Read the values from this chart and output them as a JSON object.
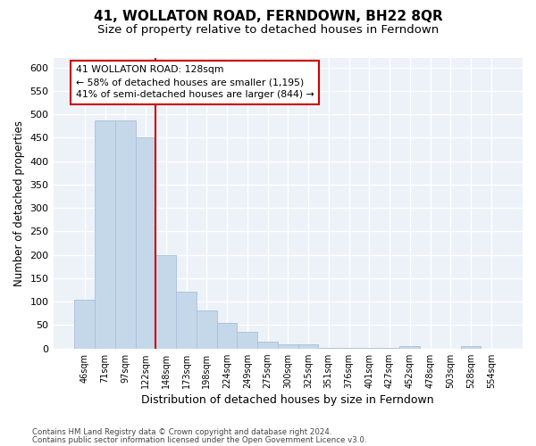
{
  "title": "41, WOLLATON ROAD, FERNDOWN, BH22 8QR",
  "subtitle": "Size of property relative to detached houses in Ferndown",
  "xlabel": "Distribution of detached houses by size in Ferndown",
  "ylabel": "Number of detached properties",
  "categories": [
    "46sqm",
    "71sqm",
    "97sqm",
    "122sqm",
    "148sqm",
    "173sqm",
    "198sqm",
    "224sqm",
    "249sqm",
    "275sqm",
    "300sqm",
    "325sqm",
    "351sqm",
    "376sqm",
    "401sqm",
    "427sqm",
    "452sqm",
    "478sqm",
    "503sqm",
    "528sqm",
    "554sqm"
  ],
  "values": [
    105,
    487,
    487,
    450,
    200,
    122,
    82,
    55,
    35,
    15,
    8,
    8,
    2,
    2,
    2,
    2,
    5,
    0,
    0,
    5,
    0
  ],
  "bar_color": "#c5d8ea",
  "bar_edge_color": "#a8c0d8",
  "vline_pos": 3.5,
  "vline_color": "#cc0000",
  "annotation_text": "41 WOLLATON ROAD: 128sqm\n← 58% of detached houses are smaller (1,195)\n41% of semi-detached houses are larger (844) →",
  "annotation_box_facecolor": "#ffffff",
  "annotation_box_edgecolor": "#cc0000",
  "ylim_max": 620,
  "yticks": [
    0,
    50,
    100,
    150,
    200,
    250,
    300,
    350,
    400,
    450,
    500,
    550,
    600
  ],
  "plot_bg_color": "#edf2f8",
  "grid_color": "#ffffff",
  "footer_line1": "Contains HM Land Registry data © Crown copyright and database right 2024.",
  "footer_line2": "Contains public sector information licensed under the Open Government Licence v3.0."
}
